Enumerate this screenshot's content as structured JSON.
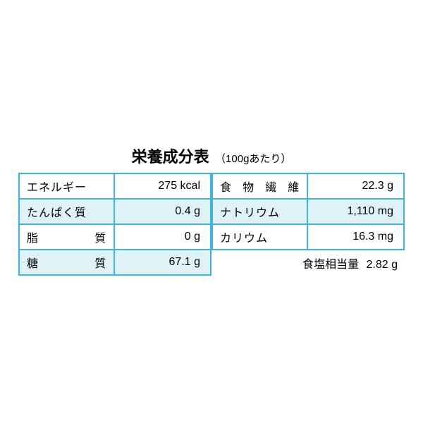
{
  "title": "栄養成分表",
  "subtitle": "（100gあたり）",
  "title_fontsize": 22,
  "title_weight": "bold",
  "subtitle_fontsize": 15,
  "border_color": "#3fb4e0",
  "border_width": 2,
  "row_bg_alt": "#def2f8",
  "row_bg": "#ffffff",
  "text_color": "#000000",
  "cell_fontsize": 16,
  "footer_fontsize": 16,
  "left": {
    "rows": [
      {
        "label": "エネルギー",
        "value": "275 kcal",
        "spread": false
      },
      {
        "label": "たんぱく質",
        "value": "0.4 g",
        "spread": false
      },
      {
        "label": "脂質",
        "value": "0 g",
        "spread": true
      },
      {
        "label": "糖質",
        "value": "67.1 g",
        "spread": true
      }
    ]
  },
  "right": {
    "rows": [
      {
        "label": "食物繊維",
        "value": "22.3 g",
        "spread": true
      },
      {
        "label": "ナトリウム",
        "value": "1,110 mg",
        "spread": false
      },
      {
        "label": "カリウム",
        "value": "16.3 mg",
        "spread": false
      }
    ]
  },
  "footer": {
    "label": "食塩相当量",
    "value": "2.82 g"
  }
}
